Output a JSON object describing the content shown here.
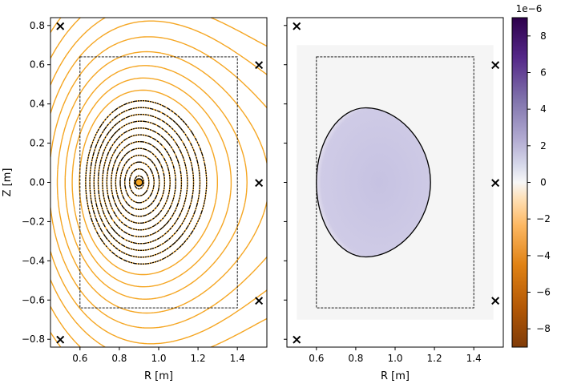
{
  "chart_data": [
    {
      "type": "contour",
      "panel": "left",
      "xlabel": "R [m]",
      "ylabel": "Z [m]",
      "xlim": [
        0.45,
        1.55
      ],
      "ylim": [
        -0.84,
        0.84
      ],
      "x_ticks": [
        0.6,
        0.8,
        1.0,
        1.2,
        1.4
      ],
      "x_tick_labels": [
        "0.6",
        "0.8",
        "1.0",
        "1.2",
        "1.4"
      ],
      "y_ticks": [
        -0.8,
        -0.6,
        -0.4,
        -0.2,
        0.0,
        0.2,
        0.4,
        0.6,
        0.8
      ],
      "y_tick_labels": [
        "−0.8",
        "−0.6",
        "−0.4",
        "−0.2",
        "0.0",
        "0.2",
        "0.4",
        "0.6",
        "0.8"
      ],
      "contour_color": "#f5a623",
      "overlay_color": "#000000",
      "grid": false,
      "magnetic_axis": {
        "r": 0.9,
        "z": 0.0
      },
      "boundary_box": {
        "r_min": 0.6,
        "r_max": 1.4,
        "z_min": -0.64,
        "z_max": 0.64
      },
      "coil_markers": [
        {
          "r": 0.5,
          "z": 0.8
        },
        {
          "r": 0.5,
          "z": -0.8
        },
        {
          "r": 1.51,
          "z": 0.6
        },
        {
          "r": 1.51,
          "z": 0.0
        },
        {
          "r": 1.51,
          "z": -0.6
        }
      ],
      "marker_symbol": "×"
    },
    {
      "type": "heatmap",
      "panel": "right",
      "xlabel": "R [m]",
      "xlim": [
        0.45,
        1.55
      ],
      "ylim": [
        -0.84,
        0.84
      ],
      "x_ticks": [
        0.6,
        0.8,
        1.0,
        1.2,
        1.4
      ],
      "x_tick_labels": [
        "0.6",
        "0.8",
        "1.0",
        "1.2",
        "1.4"
      ],
      "y_ticks": [
        -0.8,
        -0.6,
        -0.4,
        -0.2,
        0.0,
        0.2,
        0.4,
        0.6,
        0.8
      ],
      "boundary_box": {
        "r_min": 0.6,
        "r_max": 1.4,
        "z_min": -0.64,
        "z_max": 0.64
      },
      "plasma_boundary": {
        "r_in": 0.6,
        "r_out": 1.18,
        "r_top": 0.85,
        "z_top": 0.38,
        "z_bottom": -0.38
      },
      "interior_value": 9e-07,
      "coil_markers": [
        {
          "r": 0.5,
          "z": 0.8
        },
        {
          "r": 0.5,
          "z": -0.8
        },
        {
          "r": 1.51,
          "z": 0.6
        },
        {
          "r": 1.51,
          "z": 0.0
        },
        {
          "r": 1.51,
          "z": -0.6
        }
      ],
      "marker_symbol": "×",
      "colorbar": {
        "cmap": "PuOr",
        "range": [
          -9e-06,
          9e-06
        ],
        "offset_label": "1e−6",
        "ticks": [
          -8,
          -6,
          -4,
          -2,
          0,
          2,
          4,
          6,
          8
        ],
        "tick_labels": [
          "−8",
          "−6",
          "−4",
          "−2",
          "0",
          "2",
          "4",
          "6",
          "8"
        ]
      }
    }
  ]
}
